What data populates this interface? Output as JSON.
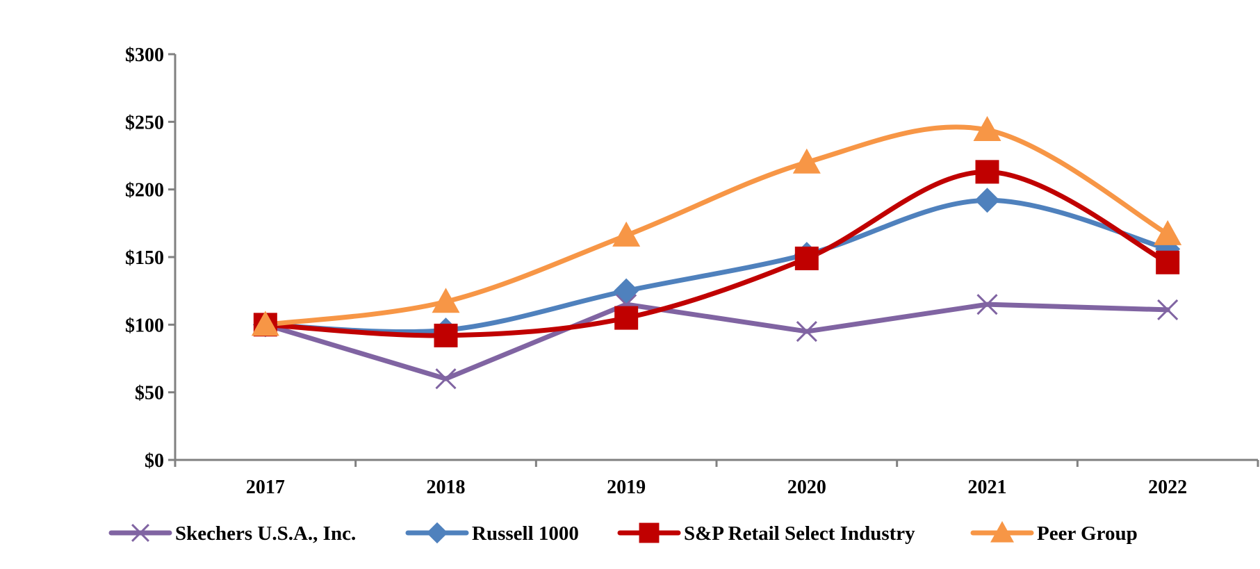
{
  "chart_data": {
    "type": "line",
    "title": "",
    "xlabel": "",
    "ylabel": "",
    "categories": [
      "2017",
      "2018",
      "2019",
      "2020",
      "2021",
      "2022"
    ],
    "ylim": [
      0,
      300
    ],
    "yticks": [
      0,
      50,
      100,
      150,
      200,
      250,
      300
    ],
    "ytick_labels": [
      "$0",
      "$50",
      "$100",
      "$150",
      "$200",
      "$250",
      "$300"
    ],
    "grid": false,
    "legend_position": "bottom",
    "series": [
      {
        "name": "Skechers U.S.A., Inc.",
        "values": [
          100,
          60,
          115,
          95,
          115,
          111
        ],
        "color": "#8064A2",
        "marker": "x",
        "smooth": false
      },
      {
        "name": "Russell 1000",
        "values": [
          100,
          96,
          125,
          152,
          192,
          156
        ],
        "color": "#4F81BD",
        "marker": "diamond",
        "smooth": true
      },
      {
        "name": "S&P Retail Select Industry",
        "values": [
          100,
          92,
          105,
          149,
          213,
          146
        ],
        "color": "#C00000",
        "marker": "square",
        "smooth": true
      },
      {
        "name": "Peer Group",
        "values": [
          100,
          117,
          166,
          220,
          244,
          167
        ],
        "color": "#F79646",
        "marker": "triangle",
        "smooth": true
      }
    ]
  }
}
